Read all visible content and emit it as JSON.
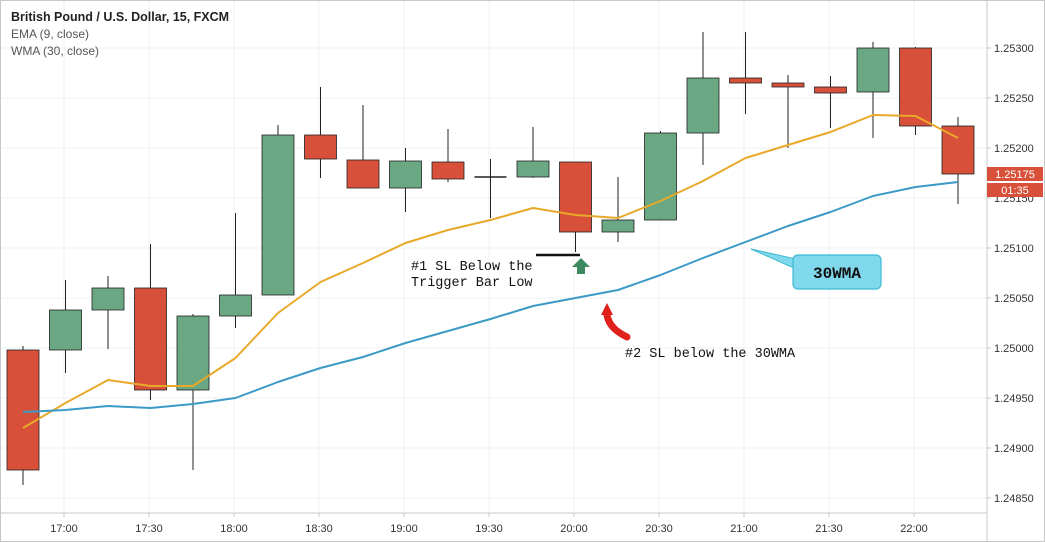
{
  "legend": {
    "title": "British Pound / U.S. Dollar, 15, FXCM",
    "ema": "EMA (9, close)",
    "wma": "WMA (30, close)"
  },
  "price_tag": {
    "price": "1.25175",
    "countdown": "01:35",
    "color": "#d9503a"
  },
  "annotations": {
    "sl1_line1": "#1 SL Below the",
    "sl1_line2": "Trigger Bar Low",
    "sl2": "#2 SL below the 30WMA",
    "wma_callout": "30WMA"
  },
  "colors": {
    "up": "#6aa783",
    "down": "#d9503a",
    "ema": "#e8a92a",
    "wma": "#3b9ac6",
    "callout_fill": "#7fd8ec",
    "arrow_green": "#3d8a5e",
    "arrow_red": "#e0201b"
  },
  "chart_data": {
    "type": "candlestick",
    "x_ticks": [
      "17:00",
      "17:30",
      "18:00",
      "18:30",
      "19:00",
      "19:30",
      "20:00",
      "20:30",
      "21:00",
      "21:30",
      "22:00"
    ],
    "y_ticks": [
      "1.24850",
      "1.24900",
      "1.24950",
      "1.25000",
      "1.25050",
      "1.25100",
      "1.25150",
      "1.25200",
      "1.25250",
      "1.25300"
    ],
    "ylim": [
      1.2484,
      1.2537
    ],
    "grid": true,
    "candles": [
      {
        "time": "16:45",
        "open": 1.24998,
        "high": 1.25002,
        "low": 1.24863,
        "close": 1.24878
      },
      {
        "time": "17:00",
        "open": 1.24998,
        "high": 1.25068,
        "low": 1.24975,
        "close": 1.25038
      },
      {
        "time": "17:15",
        "open": 1.25038,
        "high": 1.25072,
        "low": 1.24999,
        "close": 1.2506
      },
      {
        "time": "17:30",
        "open": 1.2506,
        "high": 1.25104,
        "low": 1.24948,
        "close": 1.24958
      },
      {
        "time": "17:45",
        "open": 1.24958,
        "high": 1.25034,
        "low": 1.24878,
        "close": 1.25032
      },
      {
        "time": "18:00",
        "open": 1.25032,
        "high": 1.25135,
        "low": 1.2502,
        "close": 1.25053
      },
      {
        "time": "18:15",
        "open": 1.25053,
        "high": 1.25223,
        "low": 1.25053,
        "close": 1.25213
      },
      {
        "time": "18:30",
        "open": 1.25213,
        "high": 1.25261,
        "low": 1.2517,
        "close": 1.25189
      },
      {
        "time": "18:45",
        "open": 1.25188,
        "high": 1.25243,
        "low": 1.2516,
        "close": 1.2516
      },
      {
        "time": "19:00",
        "open": 1.2516,
        "high": 1.252,
        "low": 1.25136,
        "close": 1.25187
      },
      {
        "time": "19:15",
        "open": 1.25186,
        "high": 1.25219,
        "low": 1.25166,
        "close": 1.25169
      },
      {
        "time": "19:30",
        "open": 1.25171,
        "high": 1.25189,
        "low": 1.2513,
        "close": 1.25171
      },
      {
        "time": "19:45",
        "open": 1.25171,
        "high": 1.25221,
        "low": 1.2517,
        "close": 1.25187
      },
      {
        "time": "20:00",
        "open": 1.25186,
        "high": 1.25186,
        "low": 1.25096,
        "close": 1.25116
      },
      {
        "time": "20:15",
        "open": 1.25116,
        "high": 1.25171,
        "low": 1.25106,
        "close": 1.25128
      },
      {
        "time": "20:30",
        "open": 1.25128,
        "high": 1.25217,
        "low": 1.25128,
        "close": 1.25215
      },
      {
        "time": "20:45",
        "open": 1.25215,
        "high": 1.25316,
        "low": 1.25183,
        "close": 1.2527
      },
      {
        "time": "21:00",
        "open": 1.2527,
        "high": 1.25316,
        "low": 1.25234,
        "close": 1.25265
      },
      {
        "time": "21:15",
        "open": 1.25265,
        "high": 1.25273,
        "low": 1.252,
        "close": 1.25261
      },
      {
        "time": "21:30",
        "open": 1.25261,
        "high": 1.25272,
        "low": 1.2522,
        "close": 1.25255
      },
      {
        "time": "21:45",
        "open": 1.25256,
        "high": 1.25306,
        "low": 1.2521,
        "close": 1.253
      },
      {
        "time": "22:00",
        "open": 1.253,
        "high": 1.25301,
        "low": 1.25213,
        "close": 1.25222
      },
      {
        "time": "22:15",
        "open": 1.25222,
        "high": 1.25231,
        "low": 1.25144,
        "close": 1.25174
      }
    ],
    "series": [
      {
        "name": "EMA (9, close)",
        "values": [
          1.2492,
          1.24945,
          1.24968,
          1.24962,
          1.24962,
          1.2499,
          1.25035,
          1.25066,
          1.25085,
          1.25105,
          1.25118,
          1.25128,
          1.2514,
          1.25133,
          1.2513,
          1.25147,
          1.25167,
          1.2519,
          1.25203,
          1.25216,
          1.25233,
          1.25232,
          1.2521
        ]
      },
      {
        "name": "WMA (30, close)",
        "values": [
          1.24936,
          1.24938,
          1.24942,
          1.2494,
          1.24944,
          1.2495,
          1.24966,
          1.2498,
          1.24991,
          1.25005,
          1.25017,
          1.25029,
          1.25042,
          1.2505,
          1.25058,
          1.25073,
          1.2509,
          1.25106,
          1.25122,
          1.25136,
          1.25152,
          1.25161,
          1.25166
        ]
      }
    ]
  }
}
